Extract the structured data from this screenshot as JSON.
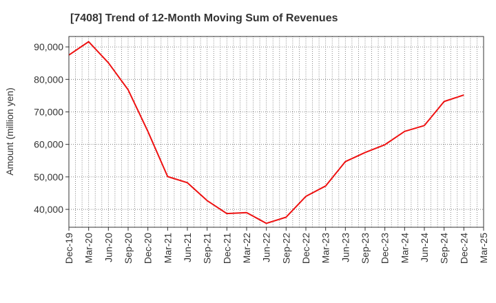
{
  "chart_data": {
    "type": "line",
    "title": "[7408]  Trend of 12-Month Moving Sum of Revenues",
    "ylabel": "Amount (million yen)",
    "xlabel": "",
    "x_ticks": [
      "Dec-19",
      "Mar-20",
      "Jun-20",
      "Sep-20",
      "Dec-20",
      "Mar-21",
      "Jun-21",
      "Sep-21",
      "Dec-21",
      "Mar-22",
      "Jun-22",
      "Sep-22",
      "Dec-22",
      "Mar-23",
      "Jun-23",
      "Sep-23",
      "Dec-23",
      "Mar-24",
      "Jun-24",
      "Sep-24",
      "Dec-24",
      "Mar-25"
    ],
    "y_ticks": [
      40000,
      50000,
      60000,
      70000,
      80000,
      90000
    ],
    "y_tick_labels": [
      "40,000",
      "50,000",
      "60,000",
      "70,000",
      "80,000",
      "90,000"
    ],
    "ylim": [
      34500,
      93200
    ],
    "grid": true,
    "series": [
      {
        "color": "#ee1111",
        "x": [
          "Dec-19",
          "Mar-20",
          "Jun-20",
          "Sep-20",
          "Dec-20",
          "Mar-21",
          "Jun-21",
          "Sep-21",
          "Dec-21",
          "Mar-22",
          "Jun-22",
          "Sep-22",
          "Dec-22",
          "Mar-23",
          "Jun-23",
          "Sep-23",
          "Dec-23",
          "Mar-24",
          "Jun-24",
          "Sep-24",
          "Dec-24"
        ],
        "values": [
          87500,
          91600,
          85100,
          76800,
          64000,
          50100,
          48200,
          42700,
          38700,
          39000,
          35700,
          37600,
          44000,
          47200,
          54700,
          57500,
          59900,
          64000,
          65800,
          73200,
          75200
        ]
      }
    ]
  }
}
